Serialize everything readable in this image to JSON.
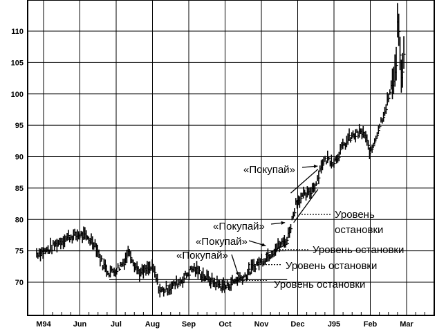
{
  "chart_data": {
    "type": "bar",
    "subtype": "ohlc-price-bars",
    "title": "",
    "xlabel": "",
    "ylabel": "",
    "x_tick_labels": [
      "M94",
      "Jun",
      "Jul",
      "Aug",
      "Sep",
      "Oct",
      "Nov",
      "Dec",
      "J95",
      "Feb",
      "Mar"
    ],
    "y_ticks": [
      70,
      75,
      80,
      85,
      90,
      95,
      100,
      105,
      110
    ],
    "ylim": [
      65,
      115
    ],
    "grid": true,
    "price_path": [
      {
        "x": 0.0,
        "y": 74.6
      },
      {
        "x": 0.3,
        "y": 75.0
      },
      {
        "x": 0.6,
        "y": 76.3
      },
      {
        "x": 0.9,
        "y": 77.2
      },
      {
        "x": 1.2,
        "y": 77.5
      },
      {
        "x": 1.4,
        "y": 77.0
      },
      {
        "x": 1.6,
        "y": 76.2
      },
      {
        "x": 1.8,
        "y": 73.0
      },
      {
        "x": 2.0,
        "y": 71.5
      },
      {
        "x": 2.2,
        "y": 72.0
      },
      {
        "x": 2.4,
        "y": 73.2
      },
      {
        "x": 2.55,
        "y": 75.0
      },
      {
        "x": 2.7,
        "y": 72.8
      },
      {
        "x": 2.85,
        "y": 71.3
      },
      {
        "x": 3.0,
        "y": 71.8
      },
      {
        "x": 3.2,
        "y": 72.3
      },
      {
        "x": 3.4,
        "y": 68.5
      },
      {
        "x": 3.7,
        "y": 69.2
      },
      {
        "x": 4.0,
        "y": 70.3
      },
      {
        "x": 4.3,
        "y": 72.2
      },
      {
        "x": 4.6,
        "y": 71.0
      },
      {
        "x": 4.9,
        "y": 69.8
      },
      {
        "x": 5.2,
        "y": 69.2
      },
      {
        "x": 5.5,
        "y": 70.3
      },
      {
        "x": 5.8,
        "y": 71.2
      },
      {
        "x": 6.0,
        "y": 72.6
      },
      {
        "x": 6.3,
        "y": 73.8
      },
      {
        "x": 6.6,
        "y": 75.4
      },
      {
        "x": 6.9,
        "y": 76.8
      },
      {
        "x": 7.0,
        "y": 79.0
      },
      {
        "x": 7.15,
        "y": 82.8
      },
      {
        "x": 7.3,
        "y": 83.5
      },
      {
        "x": 7.5,
        "y": 84.0
      },
      {
        "x": 7.7,
        "y": 85.8
      },
      {
        "x": 7.85,
        "y": 88.8
      },
      {
        "x": 8.0,
        "y": 89.6
      },
      {
        "x": 8.2,
        "y": 89.2
      },
      {
        "x": 8.4,
        "y": 91.2
      },
      {
        "x": 8.6,
        "y": 92.8
      },
      {
        "x": 8.8,
        "y": 93.5
      },
      {
        "x": 9.0,
        "y": 93.8
      },
      {
        "x": 9.2,
        "y": 90.5
      },
      {
        "x": 9.4,
        "y": 94.2
      },
      {
        "x": 9.6,
        "y": 97.5
      },
      {
        "x": 9.75,
        "y": 100.5
      },
      {
        "x": 9.9,
        "y": 104.0
      },
      {
        "x": 9.95,
        "y": 113.0
      },
      {
        "x": 10.05,
        "y": 101.5
      },
      {
        "x": 10.15,
        "y": 108.5
      }
    ],
    "annotations": {
      "buy_labels": [
        {
          "text": "«Покупай»",
          "target": {
            "x": 7.78,
            "y": 88.5
          }
        },
        {
          "text": "«Покупай»",
          "target": {
            "x": 6.88,
            "y": 79.5
          }
        },
        {
          "text": "«Покупай»",
          "target": {
            "x": 6.35,
            "y": 75.8
          }
        },
        {
          "text": "«Покупай»",
          "target": {
            "x": 5.6,
            "y": 71.0
          }
        }
      ],
      "stop_labels": [
        {
          "text": "Уровень",
          "text2": "остановки",
          "level": 80.8
        },
        {
          "text": "Уровень остановки",
          "level": 75.2
        },
        {
          "text": "Уровень остановки",
          "level": 72.8
        },
        {
          "text": "Уровень остановки",
          "level": 70.3
        }
      ]
    }
  }
}
